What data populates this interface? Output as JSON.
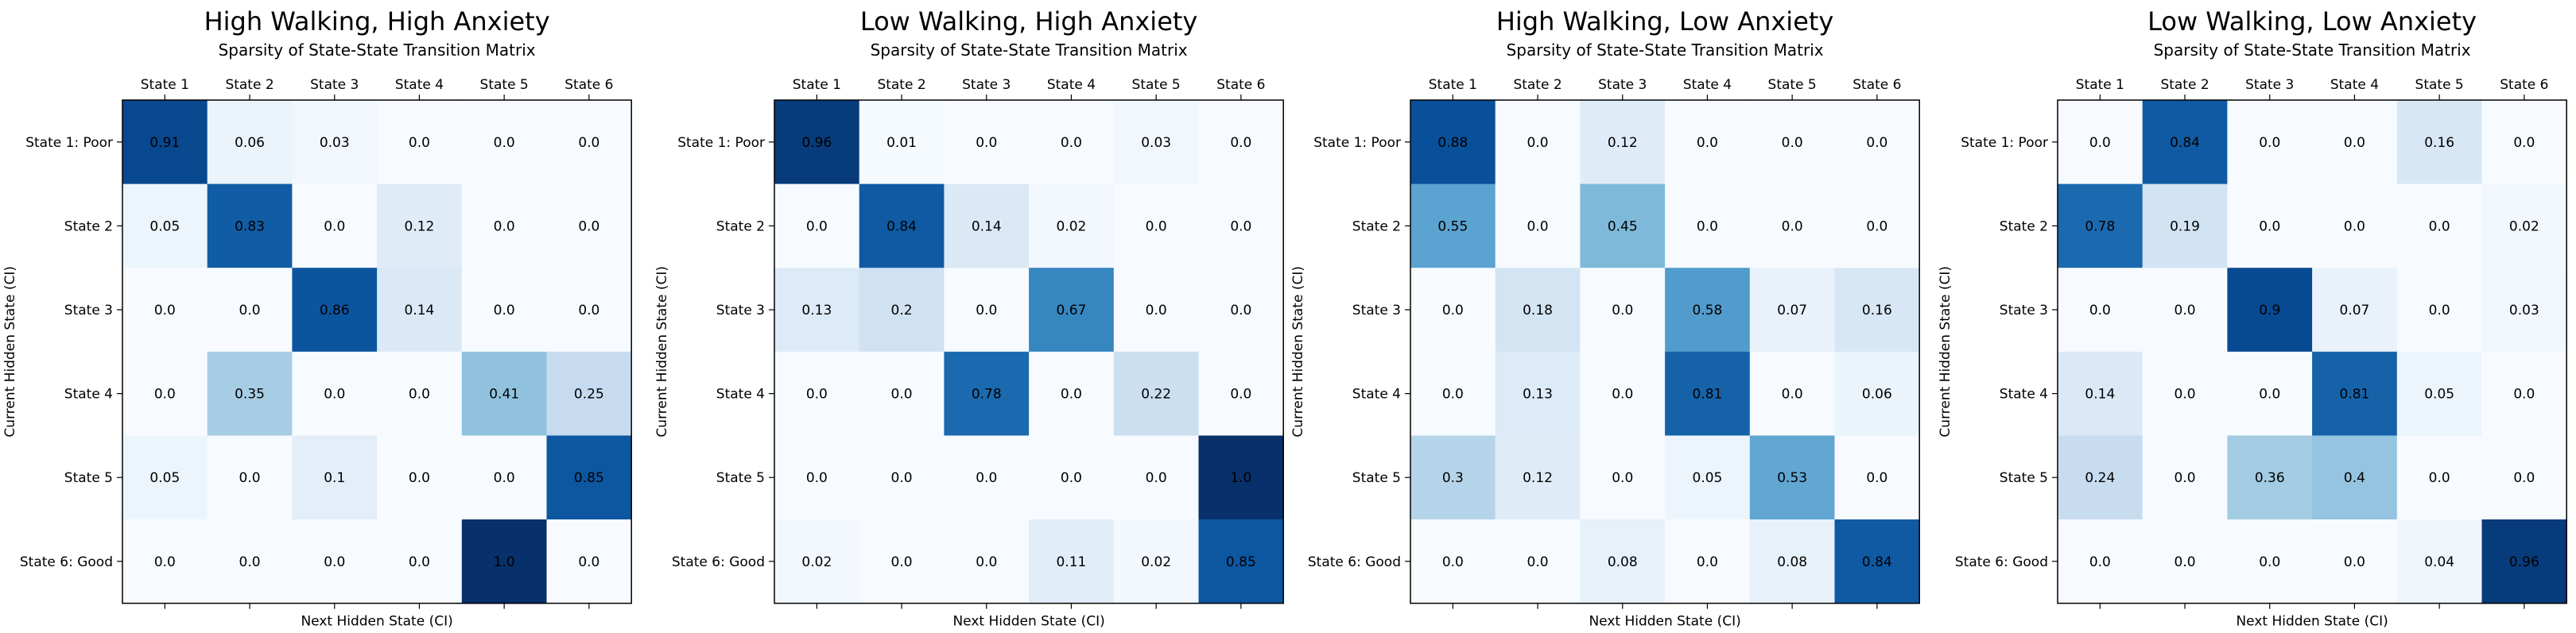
{
  "chart_data": [
    {
      "type": "heatmap",
      "title": "High Walking, High Anxiety",
      "subtitle": "Sparsity of State-State Transition Matrix",
      "xlabel": "Next Hidden State (CI)",
      "ylabel": "Current Hidden State (CI)",
      "x_categories": [
        "State 1",
        "State 2",
        "State 3",
        "State 4",
        "State 5",
        "State 6"
      ],
      "y_categories": [
        "State 1: Poor",
        "State 2",
        "State 3",
        "State 4",
        "State 5",
        "State 6: Good"
      ],
      "x_tick_position": "top",
      "colormap": "Blues",
      "value_range": [
        0,
        1
      ],
      "values": [
        [
          0.91,
          0.06,
          0.03,
          0.0,
          0.0,
          0.0
        ],
        [
          0.05,
          0.83,
          0.0,
          0.12,
          0.0,
          0.0
        ],
        [
          0.0,
          0.0,
          0.86,
          0.14,
          0.0,
          0.0
        ],
        [
          0.0,
          0.35,
          0.0,
          0.0,
          0.41,
          0.25
        ],
        [
          0.05,
          0.0,
          0.1,
          0.0,
          0.0,
          0.85
        ],
        [
          0.0,
          0.0,
          0.0,
          0.0,
          1.0,
          0.0
        ]
      ],
      "labels": [
        [
          "0.91",
          "0.06",
          "0.03",
          "0.0",
          "0.0",
          "0.0"
        ],
        [
          "0.05",
          "0.83",
          "0.0",
          "0.12",
          "0.0",
          "0.0"
        ],
        [
          "0.0",
          "0.0",
          "0.86",
          "0.14",
          "0.0",
          "0.0"
        ],
        [
          "0.0",
          "0.35",
          "0.0",
          "0.0",
          "0.41",
          "0.25"
        ],
        [
          "0.05",
          "0.0",
          "0.1",
          "0.0",
          "0.0",
          "0.85"
        ],
        [
          "0.0",
          "0.0",
          "0.0",
          "0.0",
          "1.0",
          "0.0"
        ]
      ]
    },
    {
      "type": "heatmap",
      "title": "Low Walking, High Anxiety",
      "subtitle": "Sparsity of State-State Transition Matrix",
      "xlabel": "Next Hidden State (CI)",
      "ylabel": "Current Hidden State (CI)",
      "x_categories": [
        "State 1",
        "State 2",
        "State 3",
        "State 4",
        "State 5",
        "State 6"
      ],
      "y_categories": [
        "State 1: Poor",
        "State 2",
        "State 3",
        "State 4",
        "State 5",
        "State 6: Good"
      ],
      "x_tick_position": "top",
      "colormap": "Blues",
      "value_range": [
        0,
        1
      ],
      "values": [
        [
          0.96,
          0.01,
          0.0,
          0.0,
          0.03,
          0.0
        ],
        [
          0.0,
          0.84,
          0.14,
          0.02,
          0.0,
          0.0
        ],
        [
          0.13,
          0.2,
          0.0,
          0.67,
          0.0,
          0.0
        ],
        [
          0.0,
          0.0,
          0.78,
          0.0,
          0.22,
          0.0
        ],
        [
          0.0,
          0.0,
          0.0,
          0.0,
          0.0,
          1.0
        ],
        [
          0.02,
          0.0,
          0.0,
          0.11,
          0.02,
          0.85
        ]
      ],
      "labels": [
        [
          "0.96",
          "0.01",
          "0.0",
          "0.0",
          "0.03",
          "0.0"
        ],
        [
          "0.0",
          "0.84",
          "0.14",
          "0.02",
          "0.0",
          "0.0"
        ],
        [
          "0.13",
          "0.2",
          "0.0",
          "0.67",
          "0.0",
          "0.0"
        ],
        [
          "0.0",
          "0.0",
          "0.78",
          "0.0",
          "0.22",
          "0.0"
        ],
        [
          "0.0",
          "0.0",
          "0.0",
          "0.0",
          "0.0",
          "1.0"
        ],
        [
          "0.02",
          "0.0",
          "0.0",
          "0.11",
          "0.02",
          "0.85"
        ]
      ]
    },
    {
      "type": "heatmap",
      "title": "High Walking, Low Anxiety",
      "subtitle": "Sparsity of State-State Transition Matrix",
      "xlabel": "Next Hidden State (CI)",
      "ylabel": "Current Hidden State (CI)",
      "x_categories": [
        "State 1",
        "State 2",
        "State 3",
        "State 4",
        "State 5",
        "State 6"
      ],
      "y_categories": [
        "State 1: Poor",
        "State 2",
        "State 3",
        "State 4",
        "State 5",
        "State 6: Good"
      ],
      "x_tick_position": "top",
      "colormap": "Blues",
      "value_range": [
        0,
        1
      ],
      "values": [
        [
          0.88,
          0.0,
          0.12,
          0.0,
          0.0,
          0.0
        ],
        [
          0.55,
          0.0,
          0.45,
          0.0,
          0.0,
          0.0
        ],
        [
          0.0,
          0.18,
          0.0,
          0.58,
          0.07,
          0.16
        ],
        [
          0.0,
          0.13,
          0.0,
          0.81,
          0.0,
          0.06
        ],
        [
          0.3,
          0.12,
          0.0,
          0.05,
          0.53,
          0.0
        ],
        [
          0.0,
          0.0,
          0.08,
          0.0,
          0.08,
          0.84
        ]
      ],
      "labels": [
        [
          "0.88",
          "0.0",
          "0.12",
          "0.0",
          "0.0",
          "0.0"
        ],
        [
          "0.55",
          "0.0",
          "0.45",
          "0.0",
          "0.0",
          "0.0"
        ],
        [
          "0.0",
          "0.18",
          "0.0",
          "0.58",
          "0.07",
          "0.16"
        ],
        [
          "0.0",
          "0.13",
          "0.0",
          "0.81",
          "0.0",
          "0.06"
        ],
        [
          "0.3",
          "0.12",
          "0.0",
          "0.05",
          "0.53",
          "0.0"
        ],
        [
          "0.0",
          "0.0",
          "0.08",
          "0.0",
          "0.08",
          "0.84"
        ]
      ]
    },
    {
      "type": "heatmap",
      "title": "Low Walking, Low Anxiety",
      "subtitle": "Sparsity of State-State Transition Matrix",
      "xlabel": "Next Hidden State (CI)",
      "ylabel": "Current Hidden State (CI)",
      "x_categories": [
        "State 1",
        "State 2",
        "State 3",
        "State 4",
        "State 5",
        "State 6"
      ],
      "y_categories": [
        "State 1: Poor",
        "State 2",
        "State 3",
        "State 4",
        "State 5",
        "State 6: Good"
      ],
      "x_tick_position": "top",
      "colormap": "Blues",
      "value_range": [
        0,
        1
      ],
      "values": [
        [
          0.0,
          0.84,
          0.0,
          0.0,
          0.16,
          0.0
        ],
        [
          0.78,
          0.19,
          0.0,
          0.0,
          0.0,
          0.02
        ],
        [
          0.0,
          0.0,
          0.9,
          0.07,
          0.0,
          0.03
        ],
        [
          0.14,
          0.0,
          0.0,
          0.81,
          0.05,
          0.0
        ],
        [
          0.24,
          0.0,
          0.36,
          0.4,
          0.0,
          0.0
        ],
        [
          0.0,
          0.0,
          0.0,
          0.0,
          0.04,
          0.96
        ]
      ],
      "labels": [
        [
          "0.0",
          "0.84",
          "0.0",
          "0.0",
          "0.16",
          "0.0"
        ],
        [
          "0.78",
          "0.19",
          "0.0",
          "0.0",
          "0.0",
          "0.02"
        ],
        [
          "0.0",
          "0.0",
          "0.9",
          "0.07",
          "0.0",
          "0.03"
        ],
        [
          "0.14",
          "0.0",
          "0.0",
          "0.81",
          "0.05",
          "0.0"
        ],
        [
          "0.24",
          "0.0",
          "0.36",
          "0.4",
          "0.0",
          "0.0"
        ],
        [
          "0.0",
          "0.0",
          "0.0",
          "0.0",
          "0.04",
          "0.96"
        ]
      ]
    }
  ]
}
